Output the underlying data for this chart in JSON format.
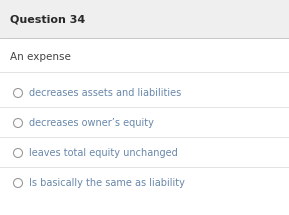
{
  "title": "Question 34",
  "question": "An expense",
  "options": [
    "decreases assets and liabilities",
    "decreases owner’s equity",
    "leaves total equity unchanged",
    "Is basically the same as liability"
  ],
  "header_bg": "#efefef",
  "body_bg": "#ffffff",
  "title_color": "#2a2a2a",
  "question_color": "#444444",
  "option_color": "#6888aa",
  "divider_color": "#d8d8d8",
  "header_divider_color": "#c8c8c8",
  "title_fontsize": 8.0,
  "question_fontsize": 7.5,
  "option_fontsize": 7.0,
  "circle_color": "#999999"
}
